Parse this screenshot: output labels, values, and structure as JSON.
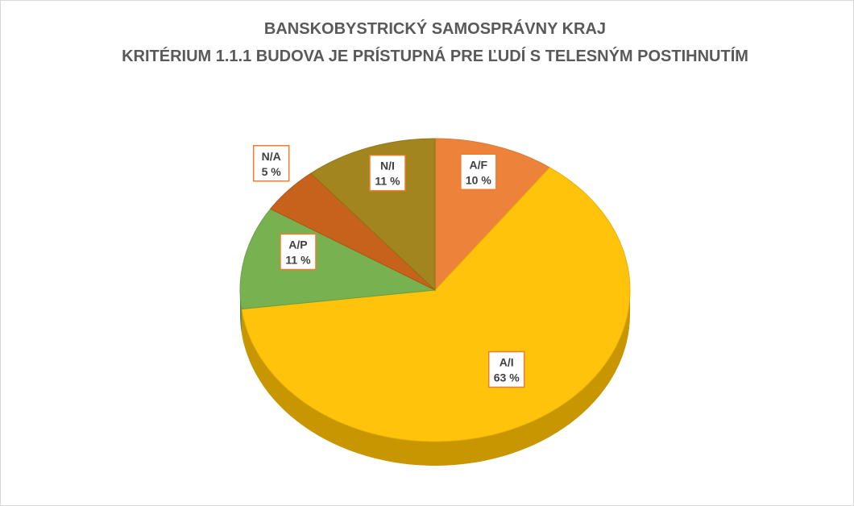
{
  "chart_data": {
    "type": "pie",
    "title": [
      "BANSKOBYSTRICKÝ SAMOSPRÁVNY KRAJ",
      "KRITÉRIUM 1.1.1 BUDOVA JE PRÍSTUPNÁ PRE ĽUDÍ S TELESNÝM POSTIHNUTÍM"
    ],
    "categories": [
      "A/F",
      "A/I",
      "A/P",
      "N/A",
      "N/I"
    ],
    "values": [
      10,
      63,
      11,
      5,
      11
    ],
    "value_labels": [
      "10 %",
      "63 %",
      "11 %",
      "5 %",
      "11 %"
    ],
    "colors": [
      "#ED7D31",
      "#FFC000",
      "#70AD47",
      "#C55A11",
      "#9E7F12"
    ]
  }
}
